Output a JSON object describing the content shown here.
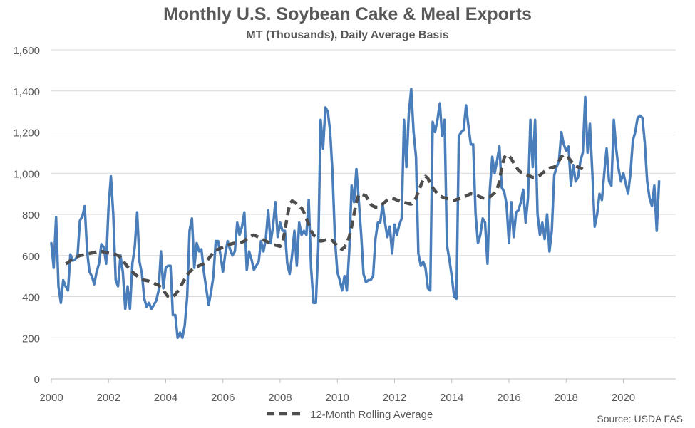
{
  "chart_data": {
    "type": "line",
    "title": "Monthly U.S. Soybean Cake & Meal Exports",
    "subtitle": "MT (Thousands), Daily Average Basis",
    "source": "Source: USDA FAS",
    "xlabel": "",
    "ylabel": "",
    "ylim": [
      0,
      1600
    ],
    "yticks": [
      "0",
      "200",
      "400",
      "600",
      "800",
      "1,000",
      "1,200",
      "1,400",
      "1,600"
    ],
    "xticks": [
      "2000",
      "2002",
      "2004",
      "2006",
      "2008",
      "2010",
      "2012",
      "2014",
      "2016",
      "2018",
      "2020"
    ],
    "x_start": 2000,
    "x_end": 2021.833,
    "grid": true,
    "legend_position": "bottom",
    "colors": {
      "monthly": "#4a7ebb",
      "rolling": "#4d4d4d",
      "grid": "#d9d9d9",
      "text": "#595959"
    },
    "series": [
      {
        "name": "",
        "style": "solid",
        "x_start": 2000.0,
        "step": 0.0833333,
        "values": [
          660,
          540,
          785,
          450,
          370,
          480,
          450,
          430,
          605,
          575,
          580,
          600,
          770,
          790,
          840,
          620,
          520,
          500,
          460,
          520,
          560,
          655,
          640,
          560,
          830,
          985,
          800,
          480,
          450,
          600,
          520,
          340,
          450,
          340,
          560,
          640,
          810,
          570,
          510,
          390,
          350,
          370,
          340,
          360,
          380,
          430,
          620,
          440,
          540,
          550,
          550,
          310,
          310,
          200,
          225,
          200,
          260,
          400,
          720,
          780,
          540,
          660,
          620,
          630,
          520,
          440,
          360,
          420,
          500,
          670,
          670,
          600,
          520,
          610,
          670,
          630,
          600,
          620,
          760,
          700,
          740,
          810,
          530,
          620,
          580,
          530,
          550,
          570,
          670,
          620,
          680,
          820,
          660,
          740,
          860,
          690,
          760,
          720,
          720,
          560,
          510,
          600,
          720,
          550,
          760,
          700,
          720,
          700,
          870,
          540,
          370,
          370,
          640,
          1260,
          1120,
          1320,
          1300,
          1200,
          1000,
          680,
          520,
          480,
          430,
          500,
          430,
          620,
          940,
          860,
          1020,
          870,
          700,
          510,
          470,
          480,
          480,
          500,
          680,
          760,
          760,
          850,
          760,
          690,
          740,
          610,
          750,
          700,
          750,
          780,
          1260,
          1030,
          1290,
          1410,
          1200,
          1080,
          610,
          550,
          570,
          540,
          440,
          430,
          1250,
          1200,
          1260,
          1340,
          1180,
          1260,
          650,
          580,
          500,
          400,
          390,
          1180,
          1200,
          1210,
          1330,
          1230,
          1140,
          1140,
          800,
          660,
          700,
          780,
          760,
          560,
          920,
          1080,
          1000,
          1060,
          1130,
          930,
          910,
          850,
          660,
          860,
          690,
          810,
          820,
          860,
          920,
          760,
          880,
          1260,
          1030,
          1260,
          800,
          700,
          760,
          680,
          800,
          620,
          720,
          990,
          1030,
          1060,
          1200,
          1140,
          1110,
          1130,
          940,
          1040,
          960,
          980,
          1060,
          1100,
          1370,
          1100,
          1240,
          1000,
          740,
          800,
          900,
          870,
          1000,
          1120,
          960,
          940,
          1260,
          1120,
          1020,
          960,
          1000,
          950,
          900,
          1000,
          1160,
          1200,
          1270,
          1280,
          1270,
          1150,
          960,
          880,
          840,
          940,
          720,
          960
        ]
      },
      {
        "name": "12-Month Rolling Average",
        "style": "dashed",
        "x_start": 2000.5,
        "step": 0.0833333,
        "values": [
          560,
          565,
          575,
          585,
          590,
          595,
          600,
          602,
          605,
          608,
          610,
          612,
          615,
          618,
          620,
          620,
          618,
          615,
          612,
          610,
          608,
          605,
          600,
          590,
          575,
          560,
          545,
          530,
          520,
          510,
          500,
          490,
          485,
          480,
          478,
          475,
          470,
          465,
          460,
          455,
          445,
          430,
          415,
          400,
          395,
          400,
          410,
          425,
          445,
          465,
          485,
          505,
          520,
          530,
          538,
          545,
          550,
          555,
          560,
          570,
          585,
          600,
          615,
          625,
          630,
          635,
          640,
          645,
          650,
          655,
          658,
          660,
          660,
          662,
          665,
          670,
          680,
          690,
          695,
          700,
          695,
          688,
          680,
          675,
          670,
          665,
          660,
          655,
          650,
          648,
          645,
          660,
          720,
          790,
          850,
          865,
          860,
          850,
          840,
          830,
          810,
          780,
          750,
          720,
          700,
          690,
          680,
          670,
          672,
          675,
          678,
          680,
          672,
          660,
          645,
          635,
          630,
          640,
          660,
          690,
          740,
          800,
          860,
          895,
          900,
          895,
          890,
          870,
          850,
          840,
          835,
          835,
          840,
          850,
          860,
          870,
          875,
          878,
          875,
          870,
          865,
          860,
          858,
          855,
          852,
          850,
          860,
          880,
          910,
          940,
          970,
          985,
          975,
          950,
          930,
          915,
          900,
          890,
          885,
          880,
          878,
          875,
          870,
          868,
          872,
          876,
          880,
          885,
          890,
          895,
          900,
          898,
          895,
          890,
          885,
          880,
          878,
          880,
          885,
          895,
          905,
          920,
          960,
          1030,
          1075,
          1090,
          1085,
          1070,
          1050,
          1030,
          1015,
          1005,
          1000,
          995,
          990,
          985,
          980,
          980,
          985,
          990,
          1000,
          1010,
          1020,
          1025,
          1028,
          1030,
          1040,
          1060,
          1080,
          1090,
          1085,
          1075,
          1060,
          1045,
          1035,
          1030,
          1025,
          1020
        ]
      }
    ]
  }
}
